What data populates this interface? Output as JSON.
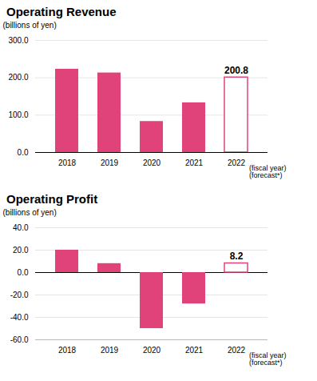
{
  "chart_data": [
    {
      "type": "bar",
      "title": "Operating Revenue",
      "ylabel": "(billions of yen)",
      "categories": [
        "2018",
        "2019",
        "2020",
        "2021",
        "2022"
      ],
      "values": [
        223,
        213,
        83,
        133,
        200.8
      ],
      "value_labels": [
        null,
        null,
        null,
        null,
        "200.8"
      ],
      "color": "#E0437A",
      "ylim": [
        0,
        300
      ],
      "yticks": [
        {
          "value": 0,
          "label": "0.0"
        },
        {
          "value": 100.0,
          "label": "100.0"
        },
        {
          "value": 200.0,
          "label": "200.0"
        },
        {
          "value": 300.0,
          "label": "300.0"
        }
      ],
      "grid": true,
      "annotation": "(fiscal year)\n(forecast*)"
    },
    {
      "type": "bar",
      "title": "Operating Profit",
      "ylabel": "(billions of yen)",
      "categories": [
        "2018",
        "2019",
        "2020",
        "2021",
        "2022"
      ],
      "values": [
        20,
        8,
        -50,
        -28,
        8.2
      ],
      "value_labels": [
        null,
        null,
        null,
        null,
        "8.2"
      ],
      "color": "#E0437A",
      "ylim": [
        -60,
        40
      ],
      "yticks": [
        {
          "value": -60.0,
          "label": "-60.0"
        },
        {
          "value": -40.0,
          "label": "-40.0"
        },
        {
          "value": -20.0,
          "label": "-20.0"
        },
        {
          "value": 0.0,
          "label": "0.0"
        },
        {
          "value": 20.0,
          "label": "20.0"
        },
        {
          "value": 40.0,
          "label": "40.0"
        }
      ],
      "grid": true,
      "annotation": "(fiscal year)\n(forecast*)"
    }
  ]
}
